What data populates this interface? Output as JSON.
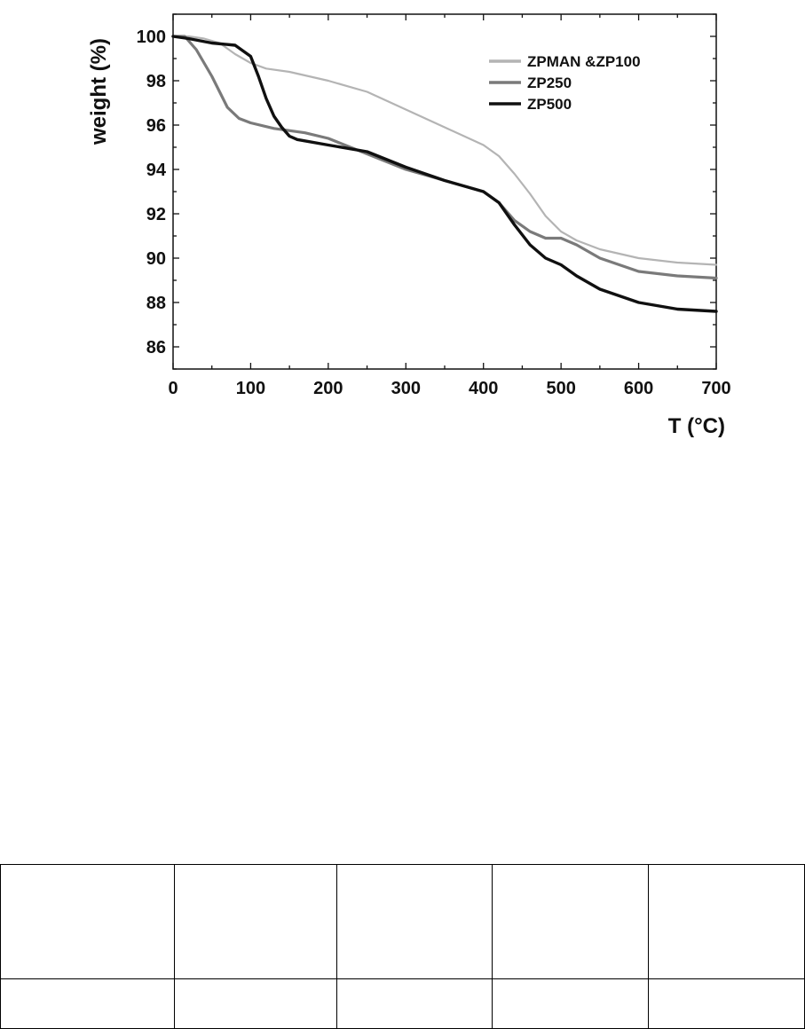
{
  "chart_data": {
    "type": "line",
    "title": "",
    "xlabel": "T (°C)",
    "ylabel": "weight (%)",
    "xlim": [
      0,
      700
    ],
    "ylim": [
      85,
      101
    ],
    "xticks": [
      "0",
      "100",
      "200",
      "300",
      "400",
      "500",
      "600",
      "700"
    ],
    "yticks": [
      "86",
      "88",
      "90",
      "92",
      "94",
      "96",
      "98",
      "100"
    ],
    "grid": false,
    "legend_position": "top-right",
    "series": [
      {
        "name": "ZPMAN &ZP100",
        "color": "#b4b4b4",
        "x": [
          0,
          20,
          40,
          60,
          80,
          100,
          120,
          150,
          200,
          250,
          300,
          350,
          400,
          420,
          440,
          460,
          480,
          500,
          520,
          550,
          600,
          650,
          700
        ],
        "y": [
          100.0,
          100.0,
          99.9,
          99.7,
          99.2,
          98.8,
          98.55,
          98.4,
          98.0,
          97.5,
          96.7,
          95.9,
          95.1,
          94.6,
          93.8,
          92.9,
          91.9,
          91.2,
          90.8,
          90.4,
          90.0,
          89.8,
          89.7
        ]
      },
      {
        "name": "ZP250",
        "color": "#7a7a7a",
        "x": [
          0,
          15,
          30,
          50,
          70,
          85,
          100,
          130,
          170,
          200,
          250,
          300,
          350,
          400,
          420,
          440,
          460,
          480,
          500,
          520,
          550,
          600,
          650,
          700
        ],
        "y": [
          100.0,
          100.0,
          99.4,
          98.2,
          96.8,
          96.3,
          96.1,
          95.85,
          95.65,
          95.4,
          94.7,
          94.0,
          93.5,
          93.0,
          92.5,
          91.7,
          91.2,
          90.9,
          90.9,
          90.6,
          90.0,
          89.4,
          89.2,
          89.1
        ]
      },
      {
        "name": "ZP500",
        "color": "#101010",
        "x": [
          0,
          20,
          50,
          80,
          100,
          110,
          120,
          130,
          140,
          150,
          160,
          200,
          250,
          300,
          350,
          400,
          420,
          440,
          460,
          480,
          500,
          520,
          550,
          600,
          650,
          700
        ],
        "y": [
          100.0,
          99.9,
          99.7,
          99.6,
          99.1,
          98.2,
          97.2,
          96.4,
          95.9,
          95.5,
          95.35,
          95.1,
          94.8,
          94.1,
          93.5,
          93.0,
          92.5,
          91.5,
          90.6,
          90.0,
          89.7,
          89.2,
          88.6,
          88.0,
          87.7,
          87.6
        ]
      }
    ]
  },
  "table": {
    "rows": [
      [
        "",
        "",
        "",
        "",
        ""
      ],
      [
        "",
        "",
        "",
        "",
        ""
      ]
    ]
  }
}
